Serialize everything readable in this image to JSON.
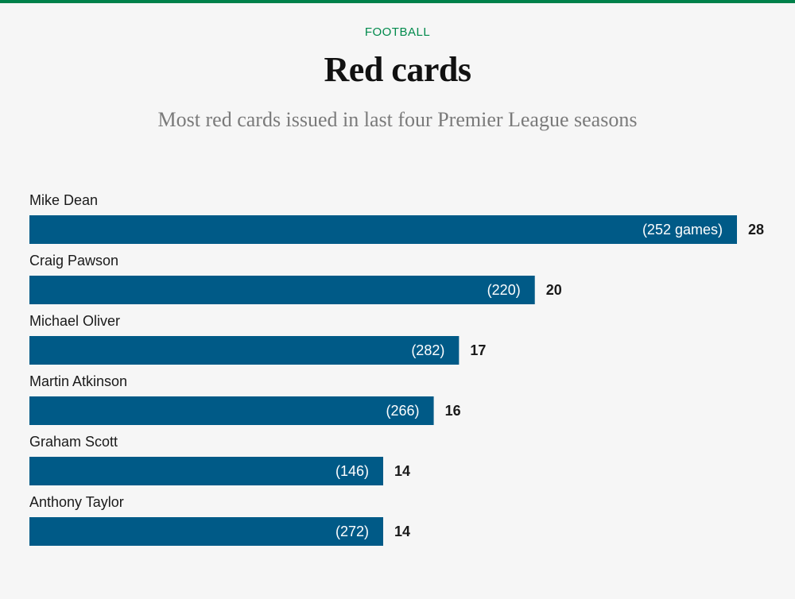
{
  "header": {
    "section": "FOOTBALL",
    "title": "Red cards",
    "subtitle": "Most red cards issued in last four Premier League seasons"
  },
  "colors": {
    "accent_green": "#008a4c",
    "bar": "#005a87",
    "background": "#f6f6f6"
  },
  "chart_data": {
    "type": "bar",
    "orientation": "horizontal",
    "title": "Red cards",
    "subtitle": "Most red cards issued in last four Premier League seasons",
    "xlabel": "",
    "ylabel": "",
    "xlim": [
      0,
      28
    ],
    "grid": false,
    "categories": [
      "Mike Dean",
      "Craig Pawson",
      "Michael Oliver",
      "Martin Atkinson",
      "Graham Scott",
      "Anthony Taylor"
    ],
    "values": [
      28,
      20,
      17,
      16,
      14,
      14
    ],
    "games_labels": [
      "(252 games)",
      "(220)",
      "(282)",
      "(266)",
      "(146)",
      "(272)"
    ],
    "games": [
      252,
      220,
      282,
      266,
      146,
      272
    ]
  }
}
